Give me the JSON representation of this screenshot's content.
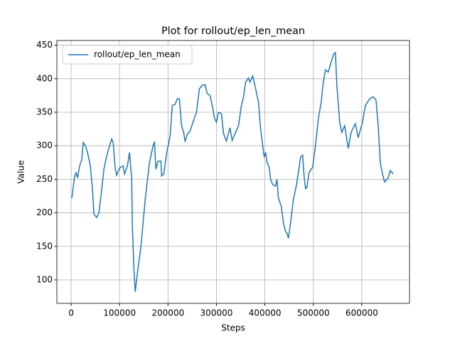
{
  "chart_data": {
    "type": "line",
    "title": "Plot for rollout/ep_len_mean",
    "xlabel": "Steps",
    "ylabel": "Value",
    "x": [
      1471,
      7353,
      10294,
      13235,
      17647,
      22059,
      25000,
      29412,
      33824,
      39706,
      44118,
      47059,
      52941,
      57353,
      63235,
      67647,
      73529,
      79412,
      83824,
      86765,
      91176,
      94118,
      100000,
      107353,
      110294,
      116176,
      120588,
      125000,
      126471,
      129412,
      132353,
      136765,
      144118,
      152941,
      161765,
      169118,
      172059,
      175000,
      179412,
      185294,
      186765,
      191176,
      197059,
      204412,
      208824,
      214706,
      219118,
      223529,
      227941,
      232353,
      235294,
      239706,
      245588,
      251471,
      258824,
      264706,
      270588,
      276471,
      280882,
      286765,
      292647,
      295588,
      300000,
      304412,
      310294,
      314706,
      320588,
      327941,
      332353,
      338235,
      345588,
      351471,
      355882,
      360294,
      366176,
      369118,
      375000,
      380882,
      386765,
      391176,
      395588,
      398529,
      401471,
      404412,
      408824,
      411765,
      416176,
      422059,
      425000,
      427941,
      433824,
      438235,
      442647,
      445588,
      448529,
      452941,
      458824,
      464706,
      469118,
      473529,
      477941,
      480882,
      483824,
      486765,
      491176,
      495588,
      498529,
      504412,
      510294,
      516176,
      520588,
      525000,
      530882,
      536765,
      542647,
      545588,
      548529,
      554412,
      558824,
      564706,
      572059,
      577941,
      586765,
      592647,
      601471,
      607353,
      616176,
      623529,
      629412,
      633824,
      638235,
      642647,
      647059,
      654412,
      658824,
      664706
    ],
    "series": [
      {
        "name": "rollout/ep_len_mean",
        "color": "#1f77b4",
        "values": [
          222,
          255,
          260,
          252,
          270,
          280,
          305,
          300,
          290,
          270,
          235,
          198,
          193,
          200,
          235,
          265,
          285,
          300,
          310,
          305,
          265,
          256,
          267,
          270,
          258,
          270,
          290,
          250,
          180,
          120,
          82,
          110,
          150,
          220,
          275,
          300,
          306,
          265,
          277,
          277,
          255,
          258,
          288,
          315,
          360,
          362,
          370,
          370,
          330,
          320,
          306,
          317,
          322,
          335,
          350,
          385,
          390,
          391,
          378,
          375,
          355,
          342,
          335,
          350,
          348,
          318,
          307,
          327,
          308,
          318,
          330,
          360,
          373,
          395,
          401,
          395,
          404,
          385,
          365,
          325,
          300,
          283,
          290,
          275,
          268,
          250,
          242,
          240,
          250,
          222,
          210,
          185,
          172,
          170,
          162,
          185,
          220,
          240,
          260,
          283,
          286,
          255,
          236,
          238,
          260,
          265,
          268,
          300,
          340,
          365,
          395,
          413,
          410,
          425,
          438,
          439,
          390,
          335,
          320,
          330,
          296,
          320,
          333,
          312,
          335,
          360,
          370,
          373,
          368,
          330,
          275,
          258,
          246,
          252,
          263,
          258
        ]
      }
    ],
    "xlim": [
      -29400,
      698500
    ],
    "ylim": [
      65,
      457
    ],
    "xticks": [
      0,
      100000,
      200000,
      300000,
      400000,
      500000,
      600000
    ],
    "yticks": [
      100,
      150,
      200,
      250,
      300,
      350,
      400,
      450
    ],
    "grid": true,
    "legend": "upper-left"
  }
}
